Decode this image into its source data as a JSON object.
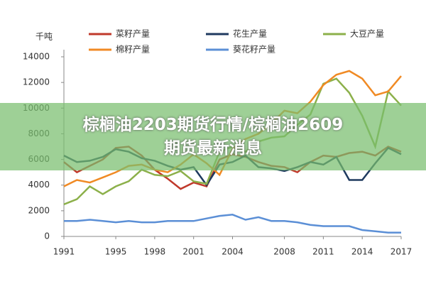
{
  "chart_data": {
    "type": "line",
    "y_label": "千吨",
    "x": [
      1991,
      1992,
      1993,
      1994,
      1995,
      1996,
      1997,
      1998,
      1999,
      2000,
      2001,
      2002,
      2003,
      2004,
      2005,
      2006,
      2007,
      2008,
      2009,
      2010,
      2011,
      2012,
      2013,
      2014,
      2015,
      2016,
      2017
    ],
    "xlim": [
      1991,
      2017
    ],
    "xticks": [
      1991,
      1995,
      1998,
      2001,
      2004,
      2008,
      2011,
      2014,
      2017
    ],
    "ylim": [
      0,
      14000
    ],
    "yticks": [
      0,
      2000,
      4000,
      6000,
      8000,
      10000,
      12000,
      14000
    ],
    "series": [
      {
        "name": "菜籽产量",
        "color": "#c0392b",
        "values": [
          5800,
          5000,
          5500,
          6000,
          6900,
          7000,
          6300,
          5200,
          4500,
          3700,
          4200,
          3900,
          6000,
          6400,
          6200,
          5800,
          5500,
          5400,
          5000,
          5800,
          6300,
          6200,
          6500,
          6600,
          6300,
          7000,
          6600
        ]
      },
      {
        "name": "花生产量",
        "color": "#1f3a5f",
        "values": [
          6300,
          5800,
          5900,
          6200,
          6800,
          6600,
          6100,
          5900,
          5500,
          5200,
          5400,
          4000,
          5600,
          5800,
          6300,
          5400,
          5300,
          5100,
          5400,
          5800,
          5600,
          6200,
          4400,
          4400,
          5700,
          6900,
          6400
        ]
      },
      {
        "name": "大豆产量",
        "color": "#8cb04a",
        "values": [
          2500,
          2900,
          3900,
          3300,
          3900,
          4300,
          5200,
          4800,
          4700,
          5100,
          4300,
          4100,
          6600,
          7000,
          6600,
          7400,
          7700,
          7800,
          8700,
          9500,
          11900,
          12300,
          11200,
          9400,
          7000,
          11300,
          10200
        ]
      },
      {
        "name": "棉籽产量",
        "color": "#f08a24",
        "values": [
          3900,
          4400,
          4200,
          4600,
          5000,
          5500,
          5600,
          5200,
          5000,
          5600,
          6400,
          5700,
          4800,
          6800,
          7600,
          8000,
          8800,
          9800,
          9600,
          10500,
          11800,
          12600,
          12900,
          12300,
          11000,
          11300,
          12500
        ]
      },
      {
        "name": "葵花籽产量",
        "color": "#5b8fd6",
        "values": [
          1200,
          1200,
          1300,
          1200,
          1100,
          1200,
          1100,
          1100,
          1200,
          1200,
          1200,
          1400,
          1600,
          1700,
          1300,
          1500,
          1200,
          1200,
          1100,
          900,
          800,
          800,
          800,
          500,
          400,
          300,
          300
        ]
      }
    ]
  },
  "banner": "棕榈油2203期货行情/棕榈油2609期货最新消息"
}
